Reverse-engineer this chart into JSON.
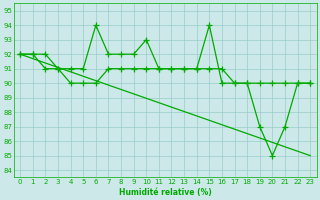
{
  "title": "",
  "xlabel": "Humidité relative (%)",
  "ylabel": "",
  "bg_color": "#cce8e8",
  "grid_color": "#99cccc",
  "line_color": "#00aa00",
  "xlim": [
    -0.5,
    23.5
  ],
  "ylim": [
    83.5,
    95.5
  ],
  "yticks": [
    84,
    85,
    86,
    87,
    88,
    89,
    90,
    91,
    92,
    93,
    94,
    95
  ],
  "xticks": [
    0,
    1,
    2,
    3,
    4,
    5,
    6,
    7,
    8,
    9,
    10,
    11,
    12,
    13,
    14,
    15,
    16,
    17,
    18,
    19,
    20,
    21,
    22,
    23
  ],
  "lines": [
    {
      "x": [
        0,
        1,
        2,
        3,
        4,
        5,
        6,
        7,
        8,
        9,
        10,
        11,
        12,
        13,
        14,
        15,
        16,
        17,
        18,
        19,
        20,
        21,
        22,
        23
      ],
      "y": [
        92,
        92,
        92,
        91,
        91,
        91,
        94,
        92,
        92,
        92,
        93,
        91,
        91,
        91,
        91,
        94,
        90,
        90,
        90,
        87,
        85,
        87,
        90,
        90
      ],
      "marker": true
    },
    {
      "x": [
        0,
        1,
        2,
        3,
        4,
        5,
        6,
        7,
        8,
        9,
        10,
        11,
        12,
        13,
        14,
        15,
        16,
        17,
        18,
        19,
        20,
        21,
        22,
        23
      ],
      "y": [
        92,
        92,
        91,
        91,
        90,
        90,
        90,
        91,
        91,
        91,
        91,
        91,
        91,
        91,
        91,
        91,
        91,
        90,
        90,
        90,
        90,
        90,
        90,
        90
      ],
      "marker": true
    },
    {
      "x": [
        0,
        23
      ],
      "y": [
        92,
        85
      ],
      "marker": false
    }
  ],
  "markersize": 4,
  "linewidth": 0.9,
  "tick_fontsize": 5,
  "xlabel_fontsize": 5.5,
  "xlabel_fontweight": "bold"
}
